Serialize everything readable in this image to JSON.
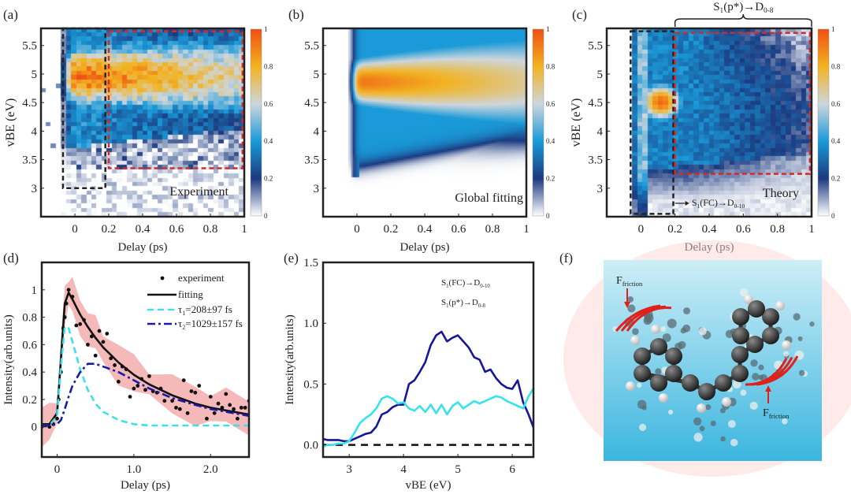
{
  "panel_labels": {
    "a": "(a)",
    "b": "(b)",
    "c": "(c)",
    "d": "(d)",
    "e": "(e)",
    "f": "(f)"
  },
  "chart_data": [
    {
      "panel": "a",
      "type": "heatmap",
      "inset_label": "Experiment",
      "xlabel": "Delay (ps)",
      "ylabel": "vBE (eV)",
      "xlim": [
        -0.2,
        1
      ],
      "ylim": [
        2.5,
        5.8
      ],
      "xticks": [
        0,
        0.2,
        0.4,
        0.6,
        0.8,
        1
      ],
      "xtick_labels": [
        "0",
        "0.2",
        "0.4",
        "0.6",
        "0.8",
        "1"
      ],
      "yticks": [
        3,
        3.5,
        4,
        4.5,
        5,
        5.5
      ],
      "ytick_labels": [
        "3",
        "3.5",
        "4",
        "4.5",
        "5",
        "5.5"
      ],
      "colorbar": {
        "range": [
          0,
          1
        ],
        "ticks": [
          0,
          0.2,
          0.4,
          0.6,
          0.8,
          1
        ],
        "tick_labels": [
          "0",
          "0.2",
          "0.4",
          "0.6",
          "0.8",
          "1"
        ]
      },
      "boxes": [
        {
          "color": "#222222",
          "x": [
            -0.07,
            0.18
          ],
          "y": [
            3.0,
            5.8
          ]
        },
        {
          "color": "#d42a2a",
          "x": [
            0.2,
            0.99
          ],
          "y": [
            3.35,
            5.75
          ]
        }
      ]
    },
    {
      "panel": "b",
      "type": "heatmap",
      "inset_label": "Global fitting",
      "xlabel": "Delay (ps)",
      "ylabel": "",
      "xlim": [
        -0.2,
        1
      ],
      "ylim": [
        2.5,
        5.8
      ],
      "xticks": [
        0,
        0.2,
        0.4,
        0.6,
        0.8,
        1
      ],
      "xtick_labels": [
        "0",
        "0.2",
        "0.4",
        "0.6",
        "0.8",
        "1"
      ],
      "yticks": [
        3,
        3.5,
        4,
        4.5,
        5,
        5.5
      ],
      "ytick_labels": [
        "3",
        "3.5",
        "4",
        "4.5",
        "5",
        "5.5"
      ],
      "colorbar": {
        "range": [
          0,
          1
        ],
        "ticks": [
          0,
          0.2,
          0.4,
          0.6,
          0.8,
          1
        ],
        "tick_labels": [
          "0",
          "0.2",
          "0.4",
          "0.6",
          "0.8",
          "1"
        ]
      },
      "boxes": []
    },
    {
      "panel": "c",
      "type": "heatmap",
      "inset_label": "Theory",
      "xlabel": "Delay (ps)",
      "ylabel": "vBE (eV)",
      "xlim": [
        -0.2,
        1
      ],
      "ylim": [
        2.5,
        5.8
      ],
      "xticks": [
        0,
        0.2,
        0.4,
        0.6,
        0.8,
        1
      ],
      "xtick_labels": [
        "0",
        "0.2",
        "0.4",
        "0.6",
        "0.8",
        "1"
      ],
      "yticks": [
        3,
        3.5,
        4,
        4.5,
        5,
        5.5
      ],
      "ytick_labels": [
        "3",
        "3.5",
        "4",
        "4.5",
        "5",
        "5.5"
      ],
      "colorbar": {
        "range": [
          0,
          1
        ],
        "ticks": [
          0,
          0.2,
          0.4,
          0.6,
          0.8,
          1
        ],
        "tick_labels": [
          "0",
          "0.2",
          "0.4",
          "0.6",
          "0.8",
          "1"
        ]
      },
      "boxes": [
        {
          "color": "#222222",
          "x": [
            -0.06,
            0.19
          ],
          "y": [
            2.55,
            5.75
          ]
        },
        {
          "color": "#d42a2a",
          "x": [
            0.2,
            0.99
          ],
          "y": [
            3.25,
            5.72
          ]
        }
      ],
      "annotation_fc": {
        "main": "S",
        "sub1": "1",
        "mid": "(FC)→D",
        "sub2": "0-10"
      },
      "brace_label": {
        "main": "S",
        "sub1": "1",
        "mid": "(p*)→D",
        "sub2": "0-8"
      }
    },
    {
      "panel": "d",
      "type": "line",
      "xlabel": "Delay (ps)",
      "ylabel": "Intensity(arb.units)",
      "xlim": [
        -0.2,
        2.5
      ],
      "ylim": [
        -0.22,
        1.2
      ],
      "xticks": [
        0,
        1,
        2
      ],
      "xtick_labels": [
        "0",
        "1.0",
        "2.0"
      ],
      "yticks": [
        0,
        0.2,
        0.4,
        0.6,
        0.8,
        1
      ],
      "ytick_labels": [
        "0",
        "0.2",
        "0.4",
        "0.6",
        "0.8",
        "1"
      ],
      "legend": [
        {
          "key": "experiment",
          "label": "experiment"
        },
        {
          "key": "fitting",
          "label": "fitting"
        },
        {
          "key": "tau1",
          "sym": "τ",
          "sub": "1",
          "rest": "=208±97 fs"
        },
        {
          "key": "tau2",
          "sym": "τ",
          "sub": "2",
          "rest": "=1029±157 fs"
        }
      ],
      "legend_position": "top-right",
      "x": [
        -0.2,
        -0.1,
        0,
        0.05,
        0.1,
        0.15,
        0.2,
        0.3,
        0.4,
        0.5,
        0.6,
        0.8,
        1.0,
        1.2,
        1.5,
        1.8,
        2.0,
        2.2,
        2.5
      ],
      "series": [
        {
          "name": "fitting",
          "color": "#111111",
          "values": [
            0.02,
            0.02,
            0.1,
            0.5,
            0.9,
            0.98,
            0.93,
            0.82,
            0.73,
            0.65,
            0.58,
            0.47,
            0.38,
            0.31,
            0.23,
            0.17,
            0.14,
            0.12,
            0.09
          ]
        },
        {
          "name": "tau1",
          "color": "#3ee0e8",
          "values": [
            0.01,
            0.01,
            0.08,
            0.45,
            0.73,
            0.72,
            0.62,
            0.42,
            0.27,
            0.17,
            0.11,
            0.05,
            0.02,
            0.01,
            0.01,
            0.01,
            0.01,
            0.01,
            0.01
          ]
        },
        {
          "name": "tau2",
          "color": "#1a1aa8",
          "values": [
            0.01,
            0.01,
            0.02,
            0.05,
            0.13,
            0.22,
            0.3,
            0.4,
            0.46,
            0.46,
            0.44,
            0.4,
            0.34,
            0.28,
            0.21,
            0.16,
            0.13,
            0.11,
            0.08
          ]
        }
      ],
      "experiment_points": [
        [
          -0.2,
          0.0
        ],
        [
          -0.15,
          0.01
        ],
        [
          -0.1,
          0.0
        ],
        [
          -0.05,
          0.02
        ],
        [
          0,
          0.06
        ],
        [
          0.02,
          0.2
        ],
        [
          0.05,
          0.4
        ],
        [
          0.08,
          0.72
        ],
        [
          0.1,
          0.8
        ],
        [
          0.12,
          0.9
        ],
        [
          0.15,
          1.0
        ],
        [
          0.2,
          0.95
        ],
        [
          0.25,
          0.74
        ],
        [
          0.3,
          0.75
        ],
        [
          0.35,
          0.78
        ],
        [
          0.4,
          0.6
        ],
        [
          0.45,
          0.66
        ],
        [
          0.5,
          0.52
        ],
        [
          0.55,
          0.7
        ],
        [
          0.6,
          0.62
        ],
        [
          0.65,
          0.68
        ],
        [
          0.7,
          0.5
        ],
        [
          0.75,
          0.45
        ],
        [
          0.8,
          0.33
        ],
        [
          0.85,
          0.44
        ],
        [
          0.9,
          0.42
        ],
        [
          0.95,
          0.22
        ],
        [
          1.0,
          0.28
        ],
        [
          1.05,
          0.3
        ],
        [
          1.1,
          0.35
        ],
        [
          1.15,
          0.27
        ],
        [
          1.2,
          0.37
        ],
        [
          1.25,
          0.26
        ],
        [
          1.3,
          0.25
        ],
        [
          1.35,
          0.28
        ],
        [
          1.4,
          0.19
        ],
        [
          1.5,
          0.19
        ],
        [
          1.55,
          0.14
        ],
        [
          1.6,
          0.13
        ],
        [
          1.65,
          0.34
        ],
        [
          1.7,
          0.1
        ],
        [
          1.75,
          0.26
        ],
        [
          1.8,
          0.25
        ],
        [
          1.85,
          0.3
        ],
        [
          1.95,
          0.06
        ],
        [
          2.0,
          0.22
        ],
        [
          2.05,
          0.1
        ],
        [
          2.1,
          0.17
        ],
        [
          2.15,
          0.14
        ],
        [
          2.2,
          0.24
        ],
        [
          2.25,
          0.16
        ],
        [
          2.3,
          0.13
        ],
        [
          2.35,
          0.06
        ],
        [
          2.4,
          0.14
        ],
        [
          2.45,
          0.14
        ],
        [
          2.5,
          0.19
        ]
      ],
      "error_band": {
        "color": "#f4a8a8",
        "halfwidth": 0.12
      }
    },
    {
      "panel": "e",
      "type": "line",
      "xlabel": "vBE (eV)",
      "ylabel": "Intensity(arb.units)",
      "xlim": [
        2.52,
        6.39
      ],
      "ylim": [
        -0.1,
        1.5
      ],
      "xticks": [
        3,
        4,
        5,
        6
      ],
      "xtick_labels": [
        "3",
        "4",
        "5",
        "6"
      ],
      "yticks": [
        0,
        0.5,
        1.0,
        1.5
      ],
      "ytick_labels": [
        "0.0",
        "0.5",
        "1.0",
        "1.5"
      ],
      "legend": [
        {
          "key": "fc",
          "main": "S",
          "sub1": "1",
          "mid": "(FC)→D",
          "sub2": "0-10"
        },
        {
          "key": "pstar",
          "main": "S",
          "sub1": "1",
          "mid": "(p*)→D",
          "sub2": "0-8"
        }
      ],
      "x": [
        2.5,
        2.6,
        2.7,
        2.8,
        2.9,
        3.0,
        3.1,
        3.2,
        3.3,
        3.4,
        3.5,
        3.6,
        3.7,
        3.8,
        3.9,
        4.0,
        4.1,
        4.2,
        4.3,
        4.4,
        4.5,
        4.6,
        4.7,
        4.8,
        4.9,
        5.0,
        5.1,
        5.2,
        5.3,
        5.4,
        5.5,
        5.6,
        5.7,
        5.8,
        5.9,
        6.0,
        6.1,
        6.2,
        6.3,
        6.4
      ],
      "series": [
        {
          "name": "S1(p*)→D0-8",
          "color": "#15159a",
          "values": [
            0.05,
            0.04,
            0.04,
            0.04,
            0.03,
            0.03,
            0.05,
            0.07,
            0.09,
            0.1,
            0.15,
            0.25,
            0.27,
            0.31,
            0.33,
            0.33,
            0.5,
            0.53,
            0.6,
            0.68,
            0.82,
            0.9,
            0.93,
            0.85,
            0.88,
            0.9,
            0.85,
            0.8,
            0.72,
            0.7,
            0.6,
            0.62,
            0.55,
            0.5,
            0.47,
            0.46,
            0.53,
            0.35,
            0.25,
            0.13
          ]
        },
        {
          "name": "S1(FC)→D0-10",
          "color": "#36e3ec",
          "values": [
            -0.02,
            0.0,
            0.0,
            0.01,
            0.01,
            0.03,
            0.1,
            0.18,
            0.22,
            0.25,
            0.3,
            0.38,
            0.4,
            0.38,
            0.34,
            0.35,
            0.3,
            0.28,
            0.32,
            0.27,
            0.33,
            0.26,
            0.33,
            0.25,
            0.32,
            0.35,
            0.3,
            0.33,
            0.36,
            0.34,
            0.36,
            0.38,
            0.4,
            0.39,
            0.36,
            0.34,
            0.32,
            0.3,
            0.4,
            0.47
          ]
        }
      ],
      "reference_line": {
        "y": 0,
        "style": "dashed"
      }
    }
  ],
  "panel_f": {
    "force_label_1": {
      "main": "F",
      "sub": "friction"
    },
    "force_label_2": {
      "main": "F",
      "sub": "friction"
    }
  },
  "colors": {
    "cmap": [
      "#ffffff",
      "#1b3a80",
      "#1a9ad8",
      "#cdd6dc",
      "#f2b321",
      "#ef4f12"
    ],
    "box_red": "#d42a2a"
  }
}
